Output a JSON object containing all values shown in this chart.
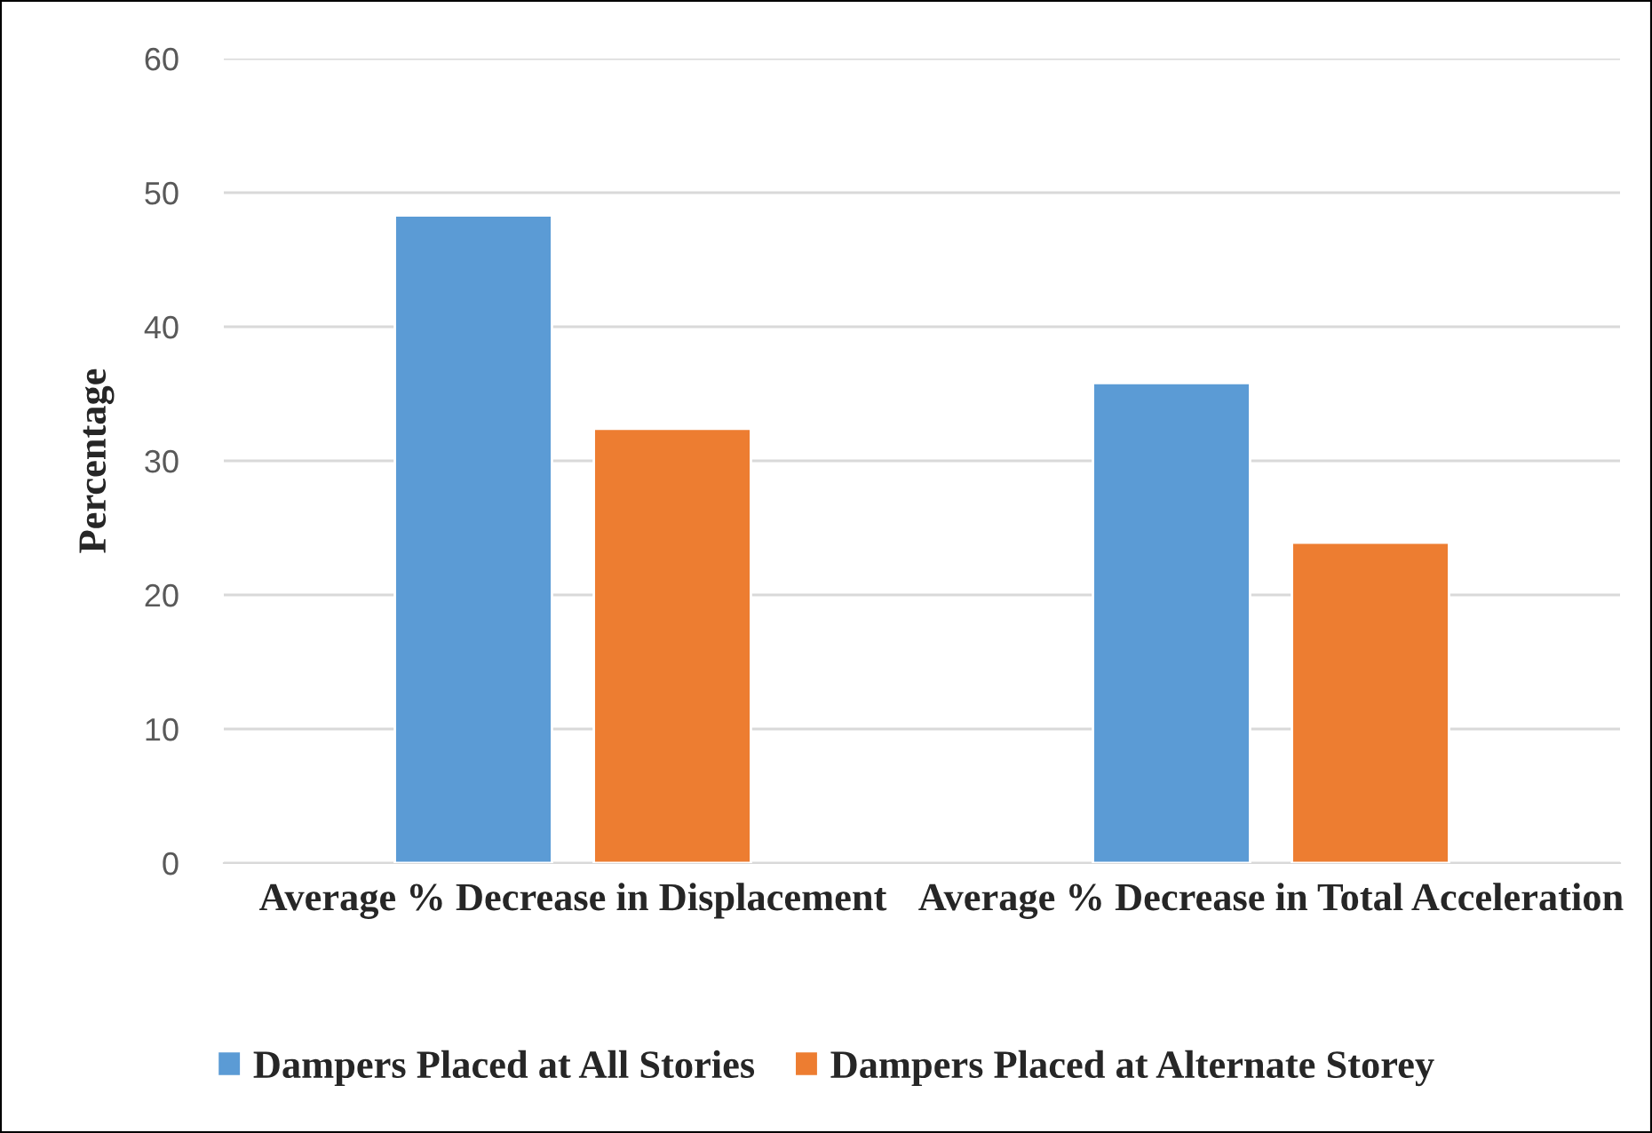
{
  "chart_data": {
    "type": "bar",
    "ylabel": "Percentage",
    "categories": [
      "Average % Decrease in Displacement",
      "Average % Decrease in Total Acceleration"
    ],
    "series": [
      {
        "name": "Dampers Placed at All Stories",
        "color": "#5b9bd5",
        "values": [
          48.3,
          35.8
        ]
      },
      {
        "name": "Dampers Placed at Alternate Storey",
        "color": "#ed7d31",
        "values": [
          32.4,
          23.9
        ]
      }
    ],
    "ylim": [
      0,
      60
    ],
    "yticks": [
      0,
      10,
      20,
      30,
      40,
      50,
      60
    ],
    "grid": "y",
    "legend": "bottom"
  }
}
